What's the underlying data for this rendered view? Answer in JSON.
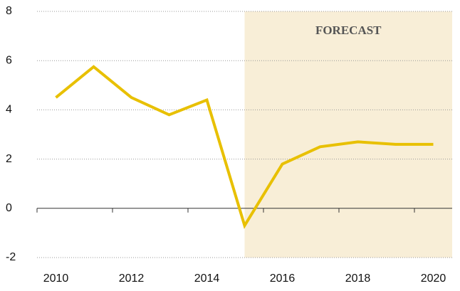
{
  "chart_data": {
    "type": "line",
    "x": [
      2010,
      2011,
      2012,
      2013,
      2014,
      2015,
      2016,
      2017,
      2018,
      2019,
      2020
    ],
    "values": [
      4.5,
      5.75,
      4.5,
      3.8,
      4.4,
      -0.7,
      1.8,
      2.5,
      2.7,
      2.6,
      2.6
    ],
    "color": "#e8c000",
    "forecast_start": 2015,
    "forecast_color": "#f8eed7",
    "annotation": "FORECAST",
    "xlim": [
      2009.5,
      2020.5
    ],
    "xticks": [
      2010,
      2012,
      2014,
      2016,
      2018,
      2020
    ],
    "ylim": [
      -2,
      8
    ],
    "yticks": [
      -2,
      0,
      2,
      4,
      6,
      8
    ],
    "grid": true
  }
}
